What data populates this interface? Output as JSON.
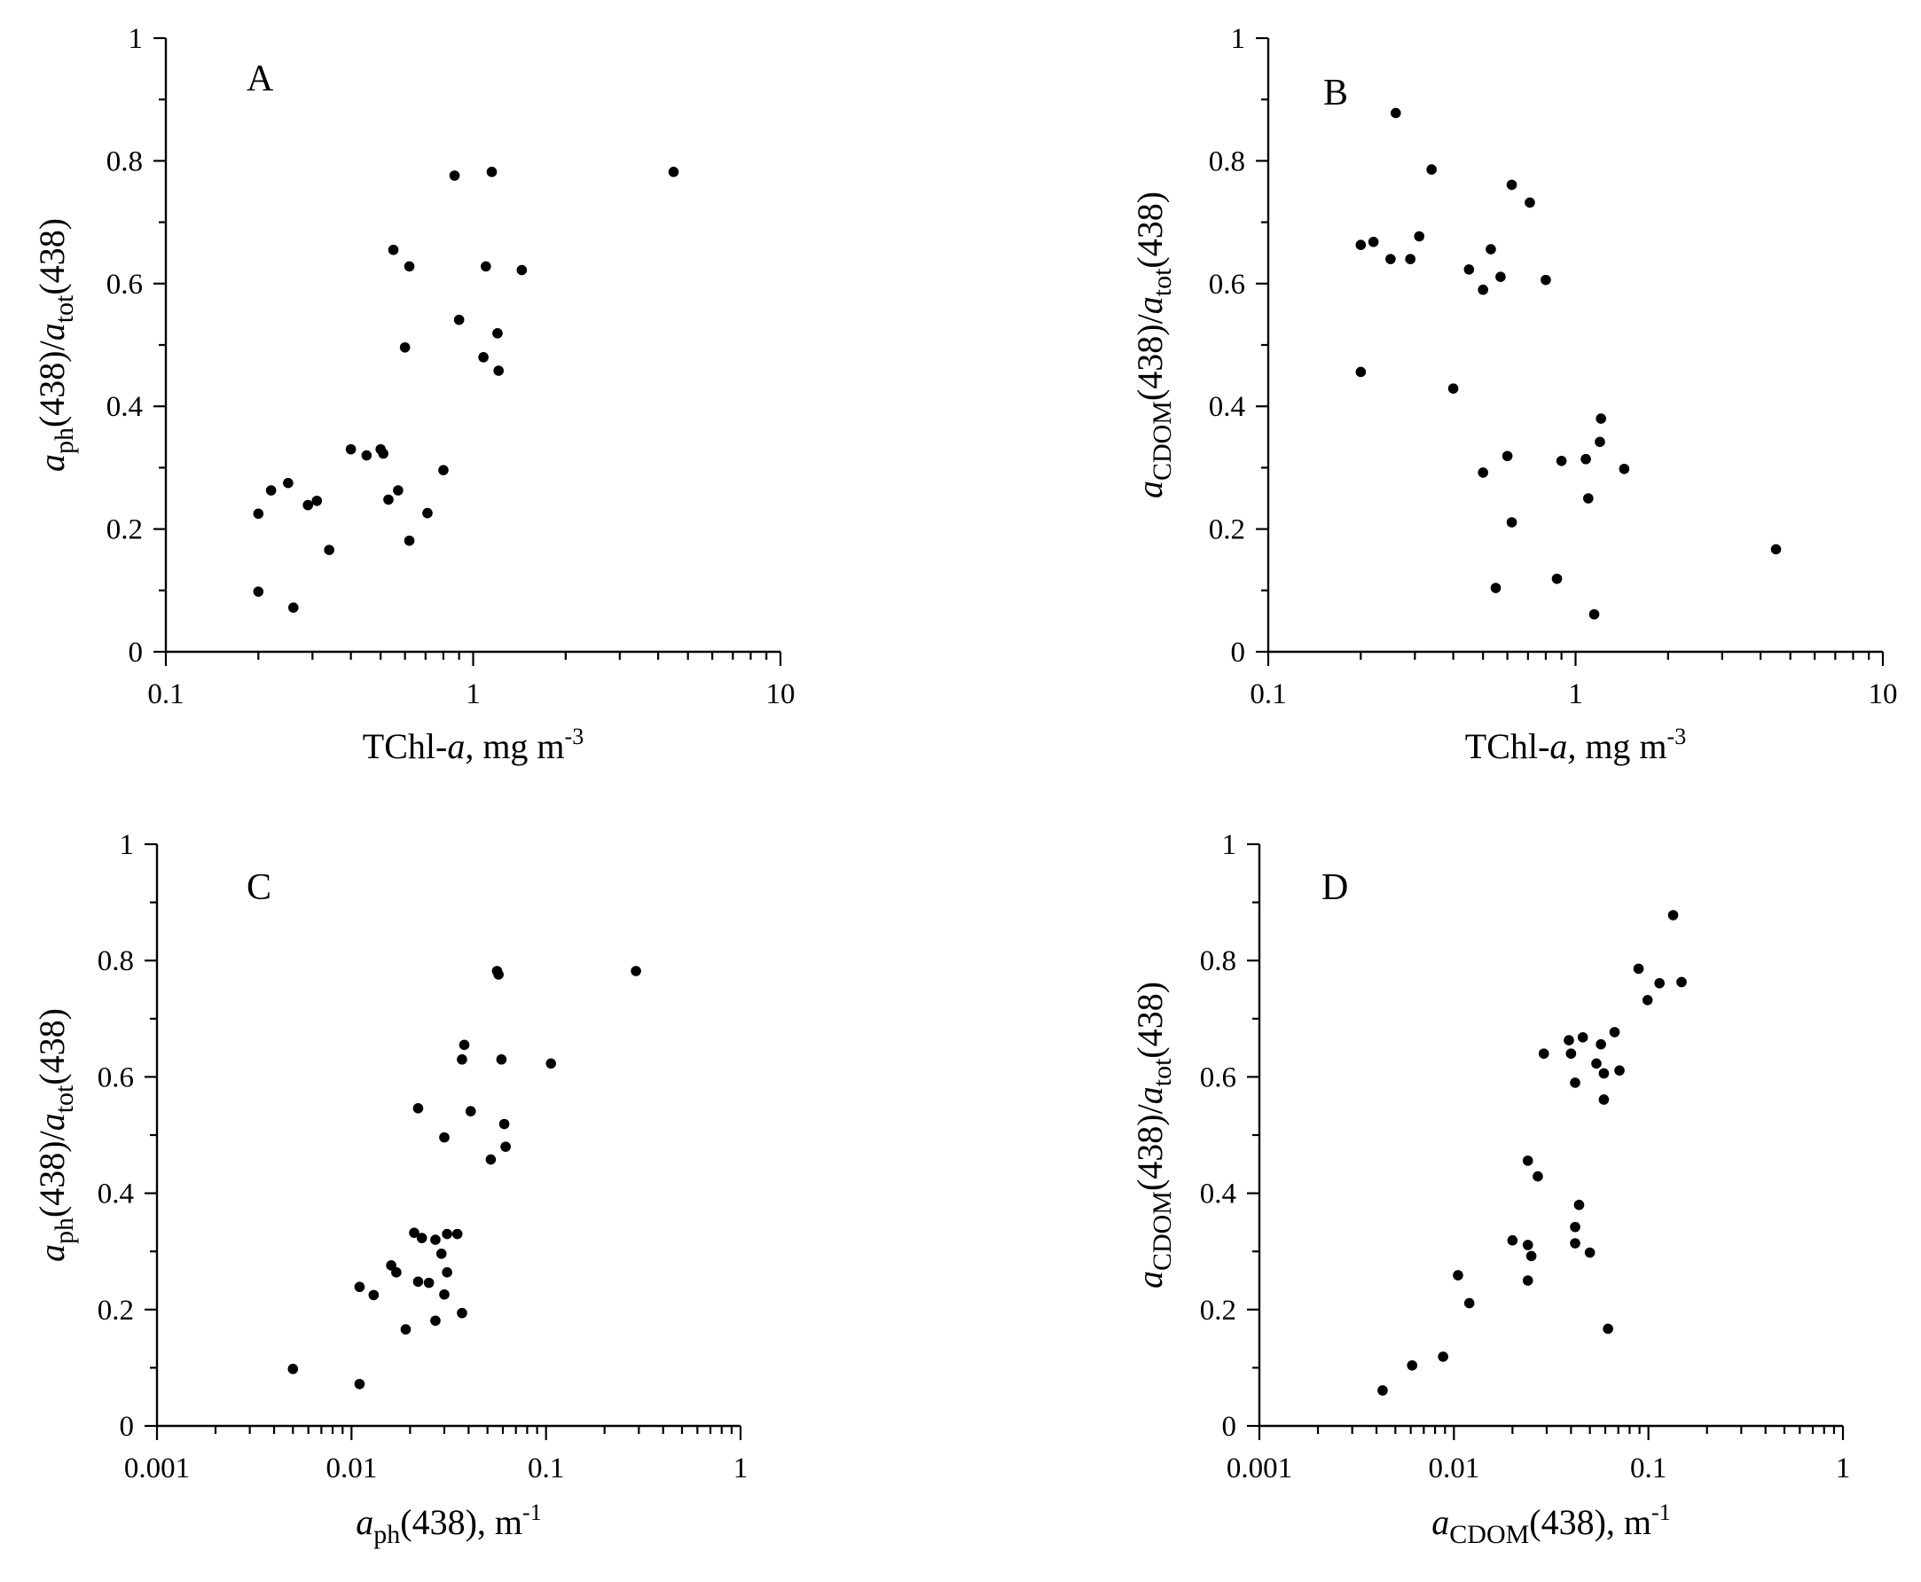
{
  "chart_data": [
    {
      "type": "scatter",
      "panel": "A",
      "xscale": "log",
      "xlim": [
        0.1,
        10
      ],
      "ylim": [
        0,
        1
      ],
      "xticks": [
        "0.1",
        "1",
        "10"
      ],
      "yticks": [
        "0",
        "0.2",
        "0.4",
        "0.6",
        "0.8",
        "1"
      ],
      "xlabel": {
        "base": "TChl-",
        "italic": "a,",
        "rest": " mg m",
        "sup": "-3"
      },
      "ylabel": {
        "a1": "a",
        "sub1": "ph",
        "mid": "(438)/",
        "a2": "a",
        "sub2": "tot",
        "end": "(438)"
      },
      "points": [
        [
          4.49,
          0.782
        ],
        [
          0.87,
          0.776
        ],
        [
          1.15,
          0.782
        ],
        [
          0.55,
          0.655
        ],
        [
          0.62,
          0.628
        ],
        [
          1.1,
          0.628
        ],
        [
          1.44,
          0.622
        ],
        [
          0.9,
          0.541
        ],
        [
          1.2,
          0.519
        ],
        [
          0.6,
          0.496
        ],
        [
          1.08,
          0.48
        ],
        [
          1.21,
          0.458
        ],
        [
          0.4,
          0.33
        ],
        [
          0.5,
          0.33
        ],
        [
          0.51,
          0.323
        ],
        [
          0.45,
          0.32
        ],
        [
          0.8,
          0.296
        ],
        [
          0.25,
          0.275
        ],
        [
          0.22,
          0.263
        ],
        [
          0.57,
          0.263
        ],
        [
          0.53,
          0.248
        ],
        [
          0.31,
          0.246
        ],
        [
          0.29,
          0.239
        ],
        [
          0.2,
          0.225
        ],
        [
          0.71,
          0.226
        ],
        [
          0.62,
          0.181
        ],
        [
          0.34,
          0.166
        ],
        [
          0.2,
          0.098
        ],
        [
          0.26,
          0.072
        ]
      ]
    },
    {
      "type": "scatter",
      "panel": "B",
      "xscale": "log",
      "xlim": [
        0.1,
        10
      ],
      "ylim": [
        0,
        1
      ],
      "xticks": [
        "0.1",
        "1",
        "10"
      ],
      "yticks": [
        "0",
        "0.2",
        "0.4",
        "0.6",
        "0.8",
        "1"
      ],
      "xlabel": {
        "base": "TChl-",
        "italic": "a,",
        "rest": " mg m",
        "sup": "-3"
      },
      "ylabel": {
        "a1": "a",
        "sub1": "CDOM",
        "mid": "(438)/",
        "a2": "a",
        "sub2": "tot",
        "end": "(438)"
      },
      "points": [
        [
          0.26,
          0.878
        ],
        [
          0.34,
          0.786
        ],
        [
          0.62,
          0.761
        ],
        [
          0.71,
          0.732
        ],
        [
          0.31,
          0.677
        ],
        [
          0.22,
          0.668
        ],
        [
          0.2,
          0.663
        ],
        [
          0.53,
          0.656
        ],
        [
          0.25,
          0.64
        ],
        [
          0.29,
          0.64
        ],
        [
          0.45,
          0.623
        ],
        [
          0.57,
          0.611
        ],
        [
          0.8,
          0.606
        ],
        [
          0.5,
          0.59
        ],
        [
          0.2,
          0.456
        ],
        [
          0.4,
          0.429
        ],
        [
          1.21,
          0.38
        ],
        [
          1.2,
          0.342
        ],
        [
          0.6,
          0.319
        ],
        [
          1.08,
          0.314
        ],
        [
          0.9,
          0.311
        ],
        [
          1.44,
          0.298
        ],
        [
          0.5,
          0.292
        ],
        [
          1.1,
          0.25
        ],
        [
          0.62,
          0.211
        ],
        [
          4.49,
          0.167
        ],
        [
          0.87,
          0.119
        ],
        [
          0.55,
          0.104
        ],
        [
          1.15,
          0.061
        ]
      ]
    },
    {
      "type": "scatter",
      "panel": "C",
      "xscale": "log",
      "xlim": [
        0.001,
        1
      ],
      "ylim": [
        0,
        1
      ],
      "xticks": [
        "0.001",
        "0.01",
        "0.1",
        "1"
      ],
      "yticks": [
        "0",
        "0.2",
        "0.4",
        "0.6",
        "0.8",
        "1"
      ],
      "xlabel": {
        "a1": "a",
        "sub1": "ph",
        "end": "(438), m",
        "sup": "-1"
      },
      "ylabel": {
        "a1": "a",
        "sub1": "ph",
        "mid": "(438)/",
        "a2": "a",
        "sub2": "tot",
        "end": "(438)"
      },
      "points": [
        [
          0.29,
          0.782
        ],
        [
          0.056,
          0.782
        ],
        [
          0.057,
          0.776
        ],
        [
          0.038,
          0.655
        ],
        [
          0.037,
          0.63
        ],
        [
          0.059,
          0.63
        ],
        [
          0.106,
          0.623
        ],
        [
          0.022,
          0.546
        ],
        [
          0.041,
          0.541
        ],
        [
          0.061,
          0.519
        ],
        [
          0.03,
          0.496
        ],
        [
          0.062,
          0.48
        ],
        [
          0.052,
          0.458
        ],
        [
          0.021,
          0.332
        ],
        [
          0.031,
          0.33
        ],
        [
          0.035,
          0.33
        ],
        [
          0.023,
          0.323
        ],
        [
          0.027,
          0.32
        ],
        [
          0.029,
          0.296
        ],
        [
          0.016,
          0.276
        ],
        [
          0.017,
          0.264
        ],
        [
          0.031,
          0.264
        ],
        [
          0.022,
          0.248
        ],
        [
          0.025,
          0.246
        ],
        [
          0.011,
          0.239
        ],
        [
          0.03,
          0.226
        ],
        [
          0.013,
          0.225
        ],
        [
          0.037,
          0.194
        ],
        [
          0.027,
          0.181
        ],
        [
          0.019,
          0.166
        ],
        [
          0.005,
          0.098
        ],
        [
          0.011,
          0.072
        ]
      ]
    },
    {
      "type": "scatter",
      "panel": "D",
      "xscale": "log",
      "xlim": [
        0.001,
        1
      ],
      "ylim": [
        0,
        1
      ],
      "xticks": [
        "0.001",
        "0.01",
        "0.1",
        "1"
      ],
      "yticks": [
        "0",
        "0.2",
        "0.4",
        "0.6",
        "0.8",
        "1"
      ],
      "xlabel": {
        "a1": "a",
        "sub1": "CDOM",
        "end": "(438), m",
        "sup": "-1"
      },
      "ylabel": {
        "a1": "a",
        "sub1": "CDOM",
        "mid": "(438)/",
        "a2": "a",
        "sub2": "tot",
        "end": "(438)"
      },
      "points": [
        [
          0.134,
          0.878
        ],
        [
          0.089,
          0.786
        ],
        [
          0.148,
          0.763
        ],
        [
          0.114,
          0.761
        ],
        [
          0.099,
          0.732
        ],
        [
          0.067,
          0.677
        ],
        [
          0.046,
          0.668
        ],
        [
          0.039,
          0.663
        ],
        [
          0.057,
          0.656
        ],
        [
          0.029,
          0.64
        ],
        [
          0.04,
          0.64
        ],
        [
          0.054,
          0.623
        ],
        [
          0.071,
          0.611
        ],
        [
          0.059,
          0.606
        ],
        [
          0.042,
          0.59
        ],
        [
          0.059,
          0.561
        ],
        [
          0.024,
          0.456
        ],
        [
          0.027,
          0.429
        ],
        [
          0.044,
          0.38
        ],
        [
          0.042,
          0.342
        ],
        [
          0.02,
          0.319
        ],
        [
          0.024,
          0.311
        ],
        [
          0.042,
          0.314
        ],
        [
          0.05,
          0.298
        ],
        [
          0.025,
          0.292
        ],
        [
          0.0105,
          0.259
        ],
        [
          0.024,
          0.25
        ],
        [
          0.012,
          0.211
        ],
        [
          0.062,
          0.167
        ],
        [
          0.0088,
          0.119
        ],
        [
          0.0061,
          0.104
        ],
        [
          0.0043,
          0.061
        ]
      ]
    }
  ]
}
